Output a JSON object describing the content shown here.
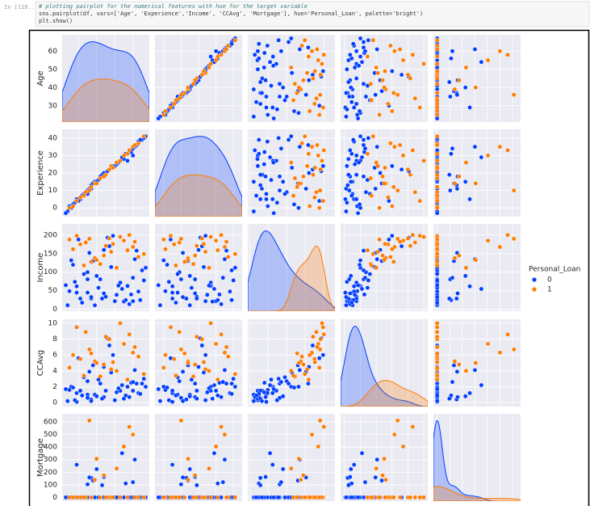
{
  "cell": {
    "prompt": "In [118...",
    "code": [
      "# plotting pairplot for the numerical features with hue for the target variable",
      "sns.pairplot(df, vars=['Age', 'Experience','Income', 'CCAvg', 'Mortgage'], hue='Personal_Loan', palette='bright')",
      "plt.show()"
    ]
  },
  "chart_data": {
    "type": "pairplot",
    "legend_title": "Personal_Loan",
    "grid": true,
    "variables": [
      {
        "label": "Age",
        "lim": [
          21,
          69
        ],
        "ticks": [
          30,
          40,
          50,
          60
        ]
      },
      {
        "label": "Experience",
        "lim": [
          -5,
          45
        ],
        "ticks": [
          0,
          10,
          20,
          30,
          40
        ]
      },
      {
        "label": "Income",
        "lim": [
          -5,
          230
        ],
        "ticks": [
          0,
          50,
          100,
          150,
          200
        ]
      },
      {
        "label": "CCAvg",
        "lim": [
          -0.5,
          10.5
        ],
        "ticks": [
          0,
          2,
          4,
          6,
          8,
          10
        ]
      },
      {
        "label": "Mortgage",
        "lim": [
          -30,
          665
        ],
        "ticks": [
          0,
          100,
          200,
          300,
          400,
          500,
          600
        ]
      }
    ],
    "series": [
      {
        "name": "0",
        "color": "#023eff",
        "values": [
          [
            25,
            1,
            49,
            1.6,
            0
          ],
          [
            45,
            19,
            34,
            1.5,
            0
          ],
          [
            39,
            15,
            11,
            1.0,
            0
          ],
          [
            35,
            9,
            100,
            2.7,
            0
          ],
          [
            35,
            8,
            45,
            1.0,
            0
          ],
          [
            37,
            13,
            29,
            0.4,
            155
          ],
          [
            53,
            27,
            72,
            1.5,
            0
          ],
          [
            50,
            24,
            22,
            0.3,
            0
          ],
          [
            35,
            10,
            81,
            0.6,
            104
          ],
          [
            65,
            39,
            105,
            2.4,
            0
          ],
          [
            29,
            5,
            45,
            0.1,
            0
          ],
          [
            48,
            23,
            114,
            3.8,
            0
          ],
          [
            59,
            32,
            40,
            2.5,
            0
          ],
          [
            67,
            41,
            112,
            2.0,
            0
          ],
          [
            60,
            30,
            22,
            1.5,
            0
          ],
          [
            38,
            14,
            130,
            4.7,
            134
          ],
          [
            42,
            18,
            81,
            2.4,
            0
          ],
          [
            46,
            21,
            193,
            8.1,
            0
          ],
          [
            55,
            28,
            21,
            0.5,
            0
          ],
          [
            56,
            31,
            25,
            0.9,
            111
          ],
          [
            57,
            27,
            63,
            2.0,
            0
          ],
          [
            29,
            5,
            62,
            1.2,
            260
          ],
          [
            44,
            18,
            43,
            0.7,
            163
          ],
          [
            36,
            11,
            152,
            3.9,
            159
          ],
          [
            31,
            5,
            29,
            1.5,
            0
          ],
          [
            62,
            36,
            158,
            2.4,
            0
          ],
          [
            43,
            19,
            29,
            0.5,
            97
          ],
          [
            26,
            0,
            132,
            2.0,
            0
          ],
          [
            63,
            38,
            48,
            1.2,
            0
          ],
          [
            28,
            3,
            74,
            0.3,
            0
          ],
          [
            52,
            26,
            64,
            1.8,
            0
          ],
          [
            24,
            -2,
            11,
            0.2,
            0
          ],
          [
            47,
            22,
            170,
            7.2,
            0
          ],
          [
            33,
            8,
            95,
            3.2,
            0
          ],
          [
            41,
            16,
            58,
            2.9,
            0
          ],
          [
            61,
            35,
            135,
            4.1,
            301
          ],
          [
            51,
            25,
            39,
            1.3,
            0
          ],
          [
            30,
            4,
            188,
            5.6,
            0
          ],
          [
            40,
            15,
            90,
            0.8,
            225
          ],
          [
            58,
            33,
            14,
            0.7,
            0
          ],
          [
            64,
            39,
            25,
            1.1,
            0
          ],
          [
            27,
            2,
            120,
            1.9,
            0
          ],
          [
            49,
            24,
            198,
            6.0,
            0
          ],
          [
            54,
            29,
            55,
            2.2,
            352
          ],
          [
            32,
            7,
            18,
            0.9,
            0
          ],
          [
            66,
            40,
            78,
            3.0,
            0
          ],
          [
            23,
            -3,
            65,
            1.7,
            0
          ],
          [
            44,
            20,
            160,
            4.5,
            0
          ],
          [
            37,
            11,
            33,
            0.2,
            0
          ],
          [
            60,
            34,
            85,
            2.6,
            121
          ]
        ]
      },
      {
        "name": "1",
        "color": "#ff7c00",
        "values": [
          [
            34,
            9,
            180,
            8.9,
            0
          ],
          [
            39,
            14,
            138,
            5.2,
            140
          ],
          [
            47,
            22,
            191,
            8.0,
            0
          ],
          [
            60,
            35,
            168,
            6.3,
            500
          ],
          [
            31,
            6,
            175,
            5.5,
            0
          ],
          [
            48,
            24,
            155,
            4.2,
            0
          ],
          [
            55,
            30,
            185,
            7.4,
            405
          ],
          [
            42,
            17,
            122,
            3.3,
            0
          ],
          [
            63,
            37,
            141,
            5.8,
            0
          ],
          [
            29,
            4,
            198,
            9.5,
            0
          ],
          [
            51,
            26,
            112,
            4.0,
            230
          ],
          [
            36,
            10,
            190,
            6.7,
            612
          ],
          [
            57,
            31,
            159,
            2.9,
            0
          ],
          [
            45,
            19,
            171,
            8.3,
            0
          ],
          [
            40,
            14,
            133,
            5.0,
            307
          ],
          [
            66,
            41,
            149,
            3.6,
            0
          ],
          [
            27,
            1,
            162,
            6.0,
            0
          ],
          [
            53,
            27,
            195,
            10.0,
            0
          ],
          [
            33,
            7,
            118,
            3.4,
            0
          ],
          [
            61,
            36,
            182,
            7.0,
            0
          ],
          [
            44,
            18,
            145,
            4.8,
            175
          ],
          [
            58,
            33,
            200,
            8.6,
            562
          ],
          [
            37,
            12,
            128,
            6.2,
            0
          ],
          [
            49,
            23,
            176,
            5.1,
            0
          ],
          [
            25,
            0,
            188,
            4.4,
            0
          ]
        ]
      }
    ]
  }
}
